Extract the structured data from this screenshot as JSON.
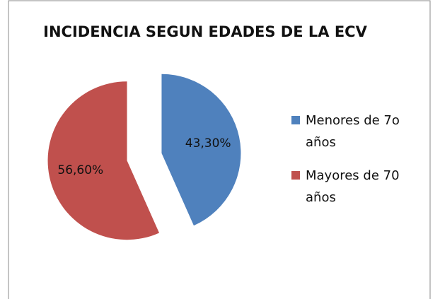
{
  "chart_data": {
    "type": "pie",
    "title": "INCIDENCIA SEGUN EDADES DE LA ECV",
    "categories": [
      "Menores de 7o años",
      "Mayores de 70 años"
    ],
    "values": [
      43.3,
      56.6
    ],
    "value_labels": [
      "43,30%",
      "56,60%"
    ],
    "colors": [
      "#4f81bd",
      "#c0504d"
    ],
    "legend": "right"
  }
}
